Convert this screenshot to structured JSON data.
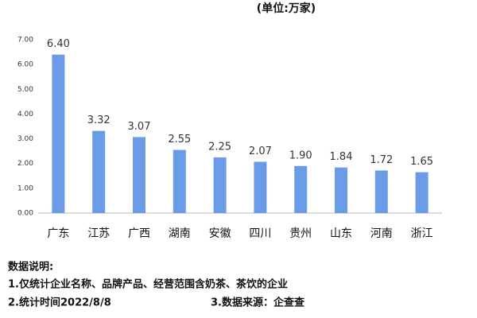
{
  "chart_data": {
    "type": "bar",
    "subtitle": "(单位:万家)",
    "categories": [
      "广东",
      "江苏",
      "广西",
      "湖南",
      "安徽",
      "四川",
      "贵州",
      "山东",
      "河南",
      "浙江"
    ],
    "values": [
      6.4,
      3.32,
      3.07,
      2.55,
      2.25,
      2.07,
      1.9,
      1.84,
      1.72,
      1.65
    ],
    "value_labels": [
      "6.40",
      "3.32",
      "3.07",
      "2.55",
      "2.25",
      "2.07",
      "1.90",
      "1.84",
      "1.72",
      "1.65"
    ],
    "color": "#6a9be6",
    "ylim": [
      0,
      7
    ],
    "yticks": [
      {
        "value": 0,
        "label": "0.00"
      },
      {
        "value": 1,
        "label": "1.00"
      },
      {
        "value": 2,
        "label": "2.00"
      },
      {
        "value": 3,
        "label": "3.00"
      },
      {
        "value": 4,
        "label": "4.00"
      },
      {
        "value": 5,
        "label": "5.00"
      },
      {
        "value": 6,
        "label": "6.00"
      },
      {
        "value": 7,
        "label": "7.00"
      }
    ],
    "grid": false
  },
  "notes": {
    "heading": "数据说明:",
    "items": [
      "1.仅统计企业名称、品牌产品、经营范围含奶茶、茶饮的企业",
      "2.统计时间2022/8/8",
      "3.数据来源：企查查"
    ]
  }
}
